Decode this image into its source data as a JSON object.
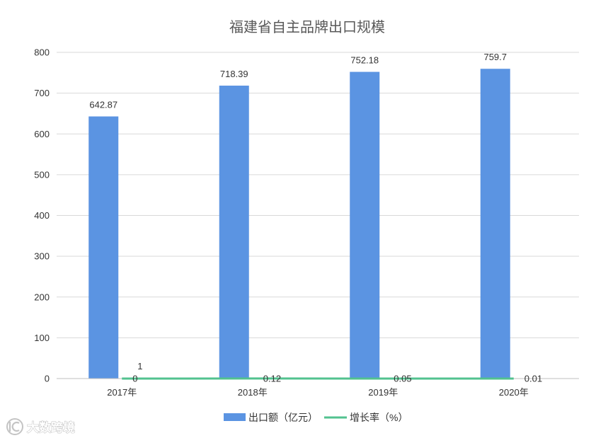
{
  "chart_data": {
    "type": "bar",
    "title": "福建省自主品牌出口规模",
    "categories": [
      "2017年",
      "2018年",
      "2019年",
      "2020年"
    ],
    "ylim": [
      0,
      800
    ],
    "yticks": [
      0,
      100,
      200,
      300,
      400,
      500,
      600,
      700,
      800
    ],
    "grid": true,
    "legend": "bottom",
    "series": [
      {
        "name": "出口额（亿元）",
        "type": "bar",
        "color": "#5b94e2",
        "values": [
          642.87,
          718.39,
          752.18,
          759.7
        ]
      },
      {
        "name": "增长率（%）",
        "type": "line",
        "color": "#52c28f",
        "values": [
          0,
          0.12,
          0.05,
          0.01
        ]
      }
    ],
    "annotations": [
      {
        "text": "1",
        "category": "2017年"
      }
    ]
  },
  "watermark": {
    "text": "大数跨境"
  }
}
